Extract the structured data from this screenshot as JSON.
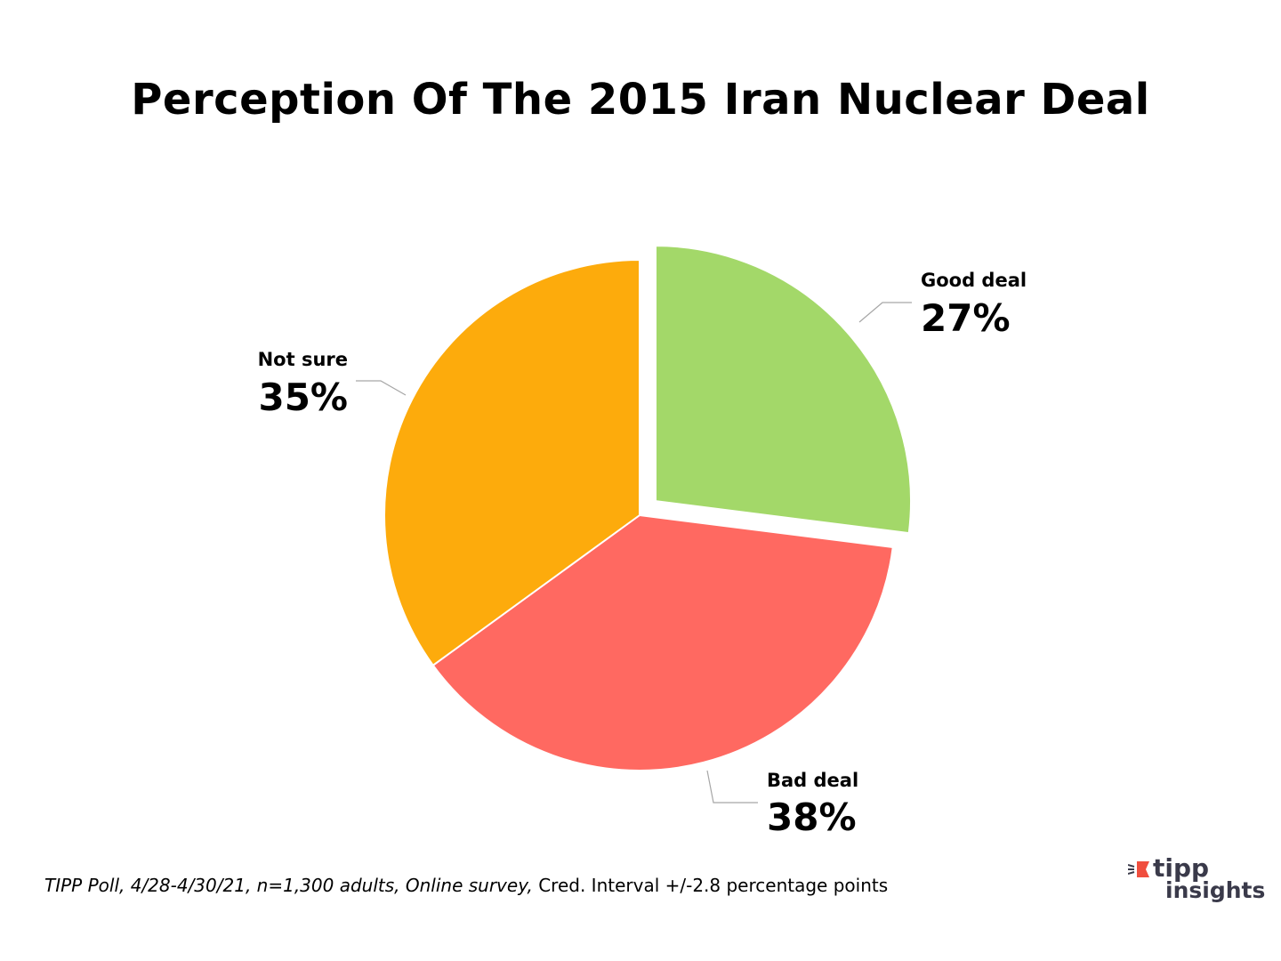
{
  "chart_data": {
    "type": "pie",
    "title": "Perception Of The 2015 Iran Nuclear Deal",
    "slices": [
      {
        "label": "Good deal",
        "value": 27,
        "display": "27%",
        "color": "#a3d869",
        "exploded": true
      },
      {
        "label": "Bad deal",
        "value": 38,
        "display": "38%",
        "color": "#ff6961"
      },
      {
        "label": "Not sure",
        "value": 35,
        "display": "35%",
        "color": "#fdab0c"
      }
    ],
    "start": "12 o'clock",
    "direction": "clockwise",
    "legend": "none",
    "label_style": "outside with leader lines"
  },
  "footnote": {
    "italic_part": "TIPP Poll, 4/28-4/30/21, n=1,300 adults, Online survey,",
    "plain_part": " Cred. Interval +/-2.8 percentage points"
  },
  "logo": {
    "line1": "tipp",
    "line2": "insights",
    "accent_color": "#f04e3e",
    "text_color": "#3a3a4a"
  }
}
